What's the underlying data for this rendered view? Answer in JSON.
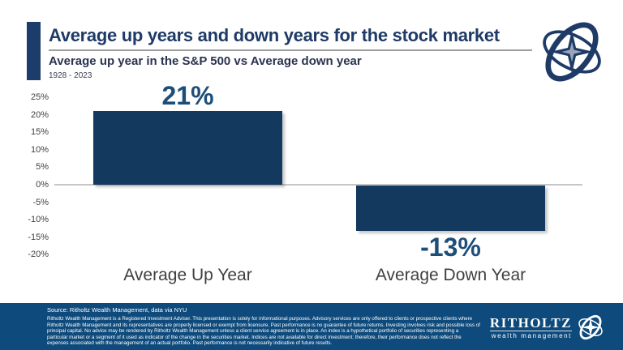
{
  "header": {
    "title": "Average up years and down years for the stock market",
    "subtitle": "Average up year in the S&P 500 vs Average down year",
    "date_range": "1928 - 2023"
  },
  "chart_data": {
    "type": "bar",
    "title": "Average up years and down years for the stock market",
    "subtitle": "Average up year in the S&P 500 vs Average down year",
    "categories": [
      "Average Up Year",
      "Average Down Year"
    ],
    "values": [
      21,
      -13
    ],
    "data_labels": [
      "21%",
      "-13%"
    ],
    "yticks": [
      "25%",
      "20%",
      "15%",
      "10%",
      "5%",
      "0%",
      "-5%",
      "-10%",
      "-15%",
      "-20%"
    ],
    "ylim": [
      -20,
      25
    ],
    "ytick_step": 5,
    "grid": false,
    "legend": "none",
    "bar_color": "#14395F",
    "value_label_color": "#1D4E79"
  },
  "footer": {
    "source": "Source: Ritholtz Wealth Management, data via NYU",
    "disclaimer": "Ritholtz Wealth Management is a Registered Investment Adviser. This presentation is solely for informational purposes. Advisory services are only offered to clients or prospective clients where Ritholtz Wealth Management and its representatives are properly licensed or exempt from licensure. Past performance is no guarantee of future returns. Investing involves risk and possible loss of principal capital. No advice may be rendered by Ritholtz Wealth Management unless a client service agreement is in place. An index is a hypothetical portfolio of securities representing a particular market or a segment of it used as indicator of the change in the securities market. Indices are not available for direct investment; therefore, their performance does not reflect the expenses associated with the management of an actual portfolio. Past performance is not necessarily indicative of future results.",
    "brand_name": "RITHOLTZ",
    "brand_tagline": "wealth management"
  },
  "colors": {
    "bar_navy": "#14395F",
    "value_label_navy": "#1D4E79",
    "title_navy": "#1E3A66",
    "footer_bg": "#0E4A7B",
    "zero_line_gray": "#C6C6C6"
  }
}
